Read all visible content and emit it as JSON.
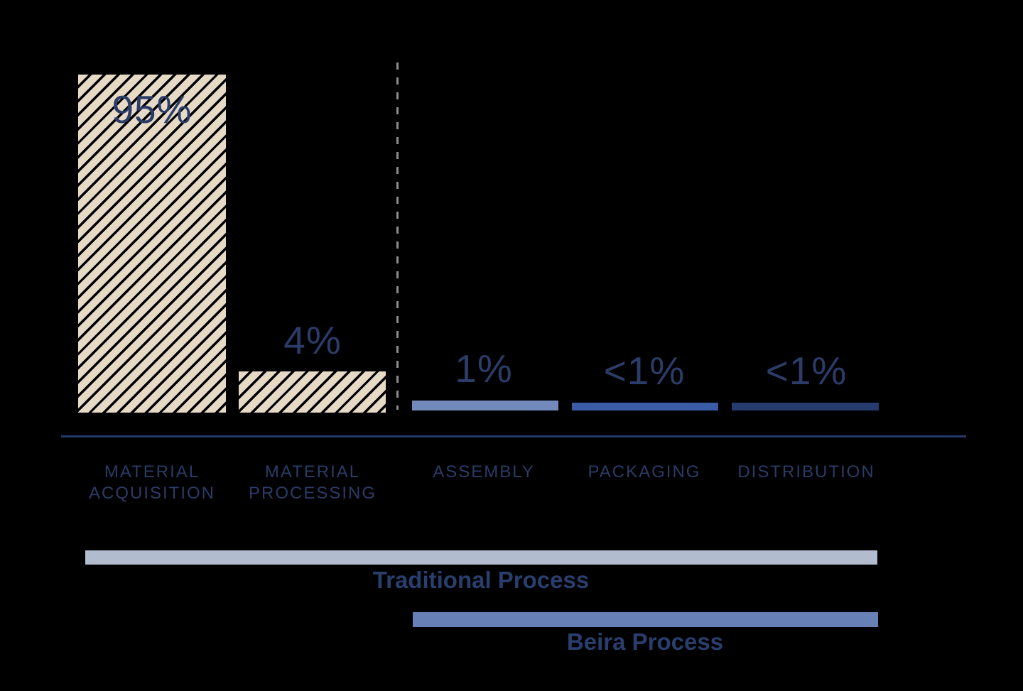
{
  "chart_data": {
    "type": "bar",
    "title": "",
    "categories": [
      "MATERIAL\nACQUISITION",
      "MATERIAL\nPROCESSING",
      "ASSEMBLY",
      "PACKAGING",
      "DISTRIBUTION"
    ],
    "values": [
      95,
      4,
      1,
      0.5,
      0.5
    ],
    "value_labels": [
      "95%",
      "4%",
      "1%",
      "<1%",
      "<1%"
    ],
    "ylim": [
      0,
      100
    ],
    "grid": false,
    "axis": "single horizontal baseline, no ticks",
    "bar_styles": [
      {
        "fill": "#E6DAC7",
        "pattern": "diagonal-hatch",
        "hatch_color": "#000000"
      },
      {
        "fill": "#E6DAC7",
        "pattern": "diagonal-hatch",
        "hatch_color": "#000000"
      },
      {
        "fill": "#7289BC",
        "pattern": "solid"
      },
      {
        "fill": "#3A5BA6",
        "pattern": "solid"
      },
      {
        "fill": "#263C6E",
        "pattern": "solid"
      }
    ],
    "divider": {
      "style": "dashed-vertical-line",
      "color": "#8C8C8C",
      "between_categories": [
        "MATERIAL PROCESSING",
        "ASSEMBLY"
      ]
    },
    "process_groups": [
      {
        "label": "Traditional Process",
        "bar_color": "#B2BCCF",
        "spans": [
          "MATERIAL ACQUISITION",
          "MATERIAL PROCESSING",
          "ASSEMBLY",
          "PACKAGING",
          "DISTRIBUTION"
        ]
      },
      {
        "label": "Beira Process",
        "bar_color": "#6780B5",
        "spans": [
          "ASSEMBLY",
          "PACKAGING",
          "DISTRIBUTION"
        ]
      }
    ]
  },
  "colors": {
    "background": "#000000",
    "text": "#2B3C68",
    "axis_line": "#24396B"
  }
}
